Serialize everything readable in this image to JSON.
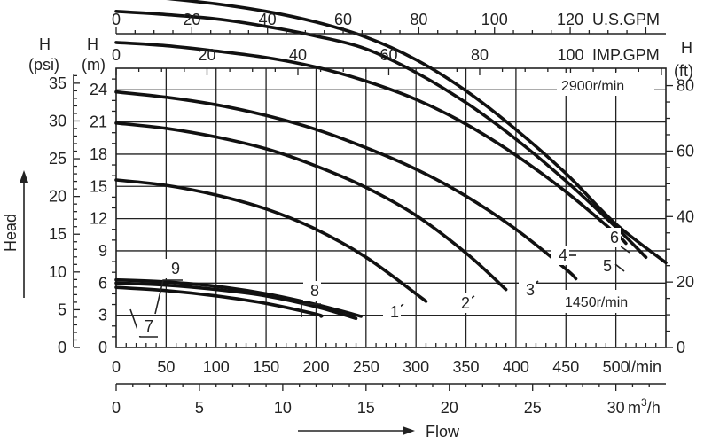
{
  "chart_data": {
    "type": "line",
    "xlabel": "Flow",
    "ylabel": "Head",
    "bottom_axis": {
      "unit": "l/min",
      "ticks": [
        0,
        50,
        100,
        150,
        200,
        250,
        300,
        350,
        400,
        450,
        500
      ],
      "xlim": [
        0,
        550
      ]
    },
    "bottom_axis_2": {
      "unit": "m³/h",
      "unit_base": "m",
      "unit_sup": "3",
      "unit_tail": "/h",
      "ticks": [
        0,
        5,
        10,
        15,
        20,
        25,
        30
      ]
    },
    "top_axis_1": {
      "unit": "U.S.GPM",
      "ticks": [
        0,
        20,
        40,
        60,
        80,
        100,
        120
      ]
    },
    "top_axis_2": {
      "unit": "IMP.GPM",
      "ticks": [
        0,
        20,
        40,
        60,
        80,
        100
      ]
    },
    "left_axis_m": {
      "header": "H",
      "unit": "(m)",
      "ticks": [
        0,
        3,
        6,
        9,
        12,
        15,
        18,
        21,
        24
      ],
      "ylim": [
        0,
        26
      ]
    },
    "left_axis_psi": {
      "header": "H",
      "unit": "(psi)",
      "ticks": [
        0,
        5,
        10,
        15,
        20,
        25,
        30,
        35
      ]
    },
    "right_axis_ft": {
      "header": "H",
      "unit": "(ft)",
      "ticks": [
        0,
        20,
        40,
        60,
        80
      ]
    },
    "speed_labels": {
      "high": "2900r/min",
      "low": "1450r/min"
    },
    "series": [
      {
        "name": "1",
        "x": [
          0,
          50,
          100,
          150,
          200,
          250,
          300,
          310
        ],
        "y": [
          15.6,
          15.1,
          14.2,
          12.9,
          11.0,
          8.4,
          5.0,
          4.3
        ]
      },
      {
        "name": "2",
        "x": [
          0,
          50,
          100,
          150,
          200,
          250,
          300,
          350,
          390
        ],
        "y": [
          20.9,
          20.4,
          19.6,
          18.5,
          16.9,
          14.9,
          12.3,
          8.8,
          5.4
        ]
      },
      {
        "name": "3",
        "x": [
          0,
          50,
          100,
          150,
          200,
          250,
          300,
          350,
          400,
          450,
          460
        ],
        "y": [
          23.8,
          23.3,
          22.6,
          21.6,
          20.3,
          18.6,
          16.6,
          14.1,
          11.0,
          7.3,
          6.4
        ]
      },
      {
        "name": "4",
        "x": [
          0,
          50,
          100,
          150,
          200,
          250,
          300,
          350,
          400,
          450,
          500,
          510
        ],
        "y": [
          28.4,
          28.1,
          27.6,
          27.0,
          26.1,
          24.8,
          23.1,
          20.8,
          17.9,
          14.5,
          10.6,
          9.7
        ]
      },
      {
        "name": "5",
        "x": [
          0,
          50,
          100,
          150,
          200,
          250,
          300,
          350,
          400,
          450,
          500,
          530
        ],
        "y": [
          31.3,
          31.0,
          30.6,
          29.9,
          29.0,
          27.8,
          25.6,
          22.8,
          19.4,
          15.5,
          11.2,
          8.4
        ]
      },
      {
        "name": "6",
        "x": [
          0,
          50,
          100,
          150,
          200,
          250,
          300,
          350,
          400,
          450,
          500,
          550
        ],
        "y": [
          32.9,
          32.5,
          32.0,
          31.3,
          30.3,
          28.9,
          26.8,
          23.9,
          20.3,
          16.2,
          11.5,
          7.9
        ]
      },
      {
        "name": "7",
        "x": [
          0,
          50,
          100,
          150,
          200,
          205
        ],
        "y": [
          5.6,
          5.3,
          4.8,
          4.1,
          3.1,
          2.9
        ]
      },
      {
        "name": "8",
        "x": [
          0,
          50,
          100,
          150,
          200,
          240
        ],
        "y": [
          6.0,
          5.8,
          5.4,
          4.8,
          3.8,
          2.7
        ]
      },
      {
        "name": "9",
        "x": [
          0,
          50,
          100,
          150,
          200,
          245
        ],
        "y": [
          6.3,
          6.1,
          5.7,
          5.0,
          4.0,
          2.9
        ]
      }
    ]
  }
}
